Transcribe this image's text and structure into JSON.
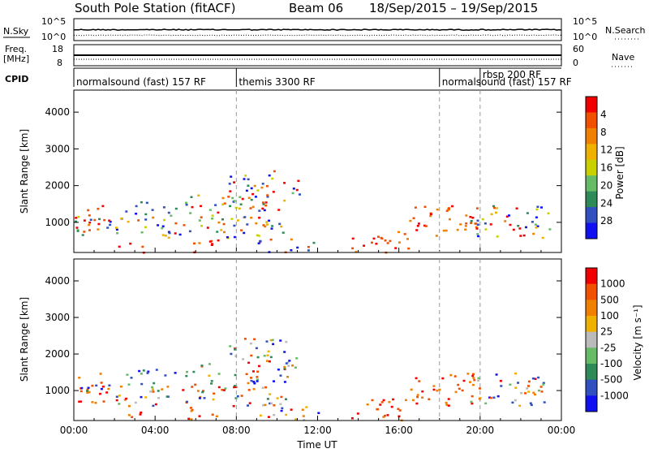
{
  "title": {
    "station": "South Pole Station (fitACF)",
    "beam": "Beam 06",
    "dates": "18/Sep/2015 – 19/Sep/2015"
  },
  "header_panels": {
    "nsky": {
      "label": "N.Sky",
      "ticks": [
        "10^5",
        "10^0"
      ],
      "right_ticks": [
        "10^5",
        "10^0"
      ],
      "right_label": "N.Search"
    },
    "freq": {
      "label": "Freq.",
      "unit": "[MHz]",
      "ticks": [
        "18",
        "8"
      ],
      "right_ticks": [
        "60",
        "0"
      ],
      "right_label": "Nave"
    },
    "cpid": {
      "label": "CPID",
      "segments": [
        {
          "name": "normalsound (fast) 157 RF",
          "start_h": 0,
          "end_h": 8
        },
        {
          "name": "themis 3300 RF",
          "start_h": 8,
          "end_h": 18
        },
        {
          "name": "normalsound (fast) 157 RF",
          "start_h": 18,
          "end_h": 24
        },
        {
          "name": "rbsp 200 RF",
          "start_h": 20,
          "end_h": 24
        }
      ]
    }
  },
  "chart_data": [
    {
      "type": "heatmap",
      "name": "power",
      "title": "",
      "xlabel": "",
      "ylabel": "Slant Range [km]",
      "xlim_hours": [
        0,
        24
      ],
      "ylim": [
        180,
        4600
      ],
      "yticks": [
        1000,
        2000,
        3000,
        4000
      ],
      "xticklabels": [
        "00:00",
        "04:00",
        "08:00",
        "12:00",
        "16:00",
        "20:00",
        "00:00"
      ],
      "colorbar": {
        "label": "Power [dB]",
        "ticks": [
          "4",
          "8",
          "12",
          "16",
          "20",
          "24",
          "28"
        ],
        "colors": [
          "#1010f0",
          "#3050c0",
          "#2e8b57",
          "#66bb66",
          "#c8d000",
          "#f0b000",
          "#f08000",
          "#f05000",
          "#f00000"
        ]
      },
      "markers_hours": [
        8,
        18,
        20
      ]
    },
    {
      "type": "heatmap",
      "name": "velocity",
      "title": "",
      "xlabel": "Time UT",
      "ylabel": "Slant Range [km]",
      "xlim_hours": [
        0,
        24
      ],
      "ylim": [
        180,
        4600
      ],
      "yticks": [
        1000,
        2000,
        3000,
        4000
      ],
      "xticklabels": [
        "00:00",
        "04:00",
        "08:00",
        "12:00",
        "16:00",
        "20:00",
        "00:00"
      ],
      "colorbar": {
        "label": "Velocity [m s⁻¹]",
        "ticks": [
          "1000",
          "500",
          "100",
          "25",
          "-25",
          "-100",
          "-500",
          "-1000"
        ],
        "colors": [
          "#1010f0",
          "#3050c0",
          "#2e8b57",
          "#66bb66",
          "#bbbbbb",
          "#f0b000",
          "#f08000",
          "#f05000",
          "#f00000"
        ]
      },
      "markers_hours": [
        8,
        18,
        20
      ]
    }
  ]
}
